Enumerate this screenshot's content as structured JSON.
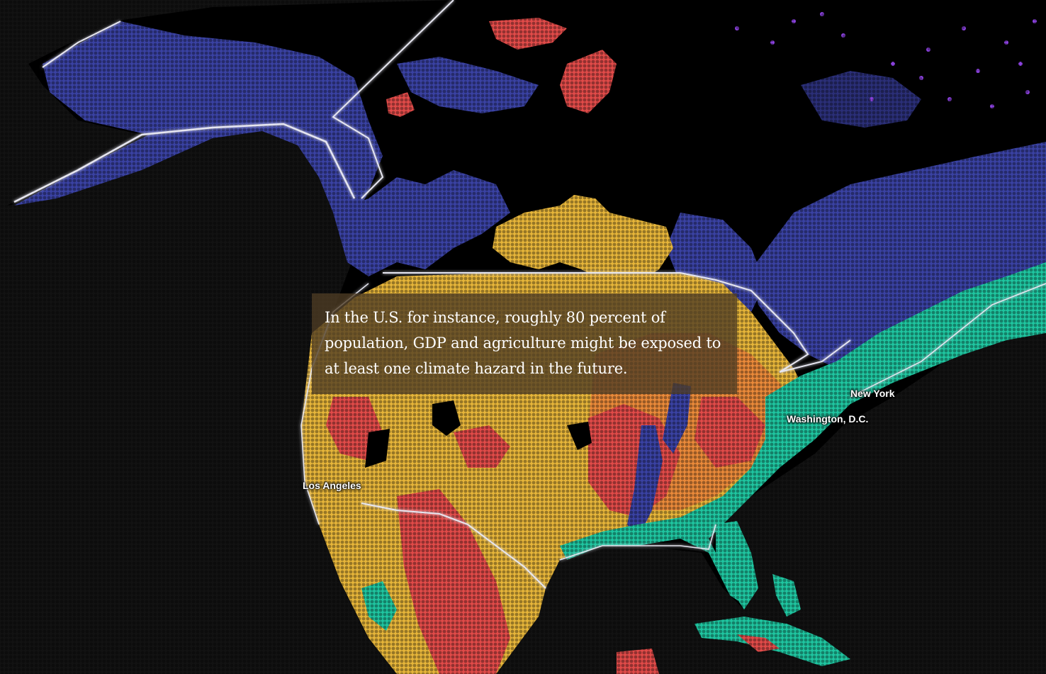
{
  "caption": {
    "text": "In the U.S. for instance, roughly 80 percent of population, GDP and agriculture might be exposed to at least one climate hazard in the future."
  },
  "cities": [
    {
      "id": "new-york",
      "label": "New York"
    },
    {
      "id": "washington-dc",
      "label": "Washington, D.C."
    },
    {
      "id": "los-angeles",
      "label": "Los Angeles"
    }
  ],
  "colors": {
    "background": "#121212",
    "land_no_hazard": "#000000",
    "border": "#e6e6f0",
    "hazard_blue": "#3a42a3",
    "hazard_yellow": "#e6b53a",
    "hazard_red": "#e14b49",
    "hazard_orange": "#ea8a3a",
    "hazard_teal": "#1fc5a0",
    "hazard_purple": "#8c42e0"
  }
}
